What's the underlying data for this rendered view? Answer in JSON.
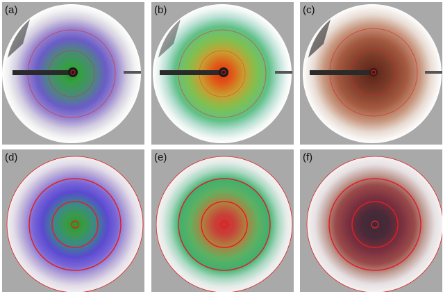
{
  "panels": [
    {
      "label": "(a)",
      "kind": "photo",
      "palette": "green-violet"
    },
    {
      "label": "(b)",
      "kind": "photo",
      "palette": "orange-green"
    },
    {
      "label": "(c)",
      "kind": "photo",
      "palette": "brown"
    },
    {
      "label": "(d)",
      "kind": "simulation",
      "palette": "green-violet"
    },
    {
      "label": "(e)",
      "kind": "simulation",
      "palette": "orange-green"
    },
    {
      "label": "(f)",
      "kind": "simulation",
      "palette": "brown"
    }
  ],
  "colors": {
    "background": "#a9a9a9",
    "ring": "#e02020",
    "needle": "#2a2a2a"
  }
}
